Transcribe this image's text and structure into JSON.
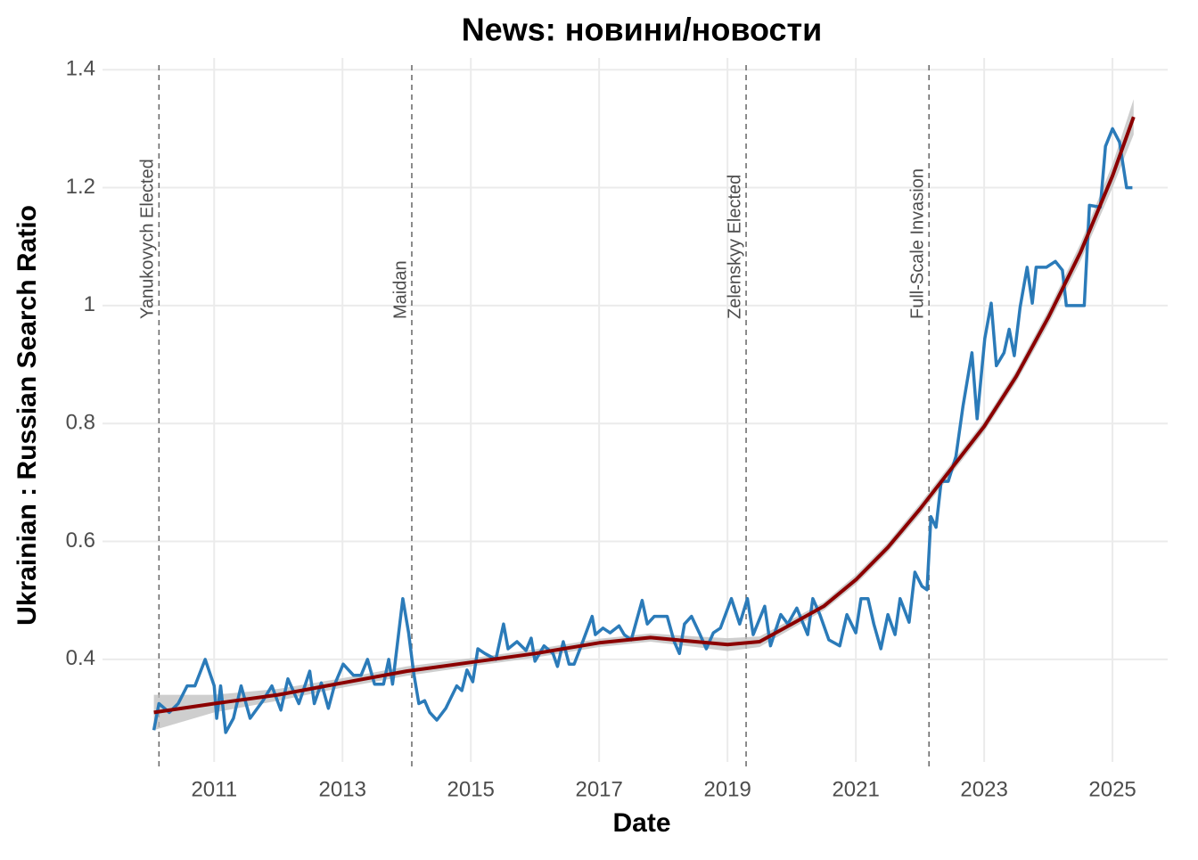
{
  "chart_data": {
    "type": "line",
    "title": "News: новини/новости",
    "xlabel": "Date",
    "ylabel": "Ukrainian : Russian Search Ratio",
    "xlim": [
      2009.26,
      2025.86
    ],
    "ylim": [
      0.226,
      1.42
    ],
    "xticks": [
      2011,
      2013,
      2015,
      2017,
      2019,
      2021,
      2023,
      2025
    ],
    "yticks": [
      0.4,
      0.6,
      0.8,
      1.0,
      1.2,
      1.4
    ],
    "grid": true,
    "series": [
      {
        "color": "#2b7bb9",
        "x": [
          2010.06,
          2010.14,
          2010.3,
          2010.44,
          2010.58,
          2010.7,
          2010.86,
          2011.0,
          2011.04,
          2011.1,
          2011.18,
          2011.3,
          2011.42,
          2011.56,
          2011.76,
          2011.9,
          2012.04,
          2012.15,
          2012.32,
          2012.49,
          2012.56,
          2012.67,
          2012.78,
          2012.88,
          2013.01,
          2013.17,
          2013.29,
          2013.39,
          2013.5,
          2013.64,
          2013.72,
          2013.78,
          2013.94,
          2014.03,
          2014.11,
          2014.19,
          2014.28,
          2014.36,
          2014.47,
          2014.61,
          2014.78,
          2014.86,
          2014.94,
          2015.03,
          2015.11,
          2015.22,
          2015.39,
          2015.51,
          2015.58,
          2015.72,
          2015.86,
          2015.94,
          2016.0,
          2016.14,
          2016.28,
          2016.35,
          2016.44,
          2016.53,
          2016.61,
          2016.72,
          2016.89,
          2016.94,
          2017.06,
          2017.17,
          2017.31,
          2017.39,
          2017.5,
          2017.67,
          2017.75,
          2017.86,
          2018.06,
          2018.17,
          2018.25,
          2018.33,
          2018.44,
          2018.56,
          2018.67,
          2018.78,
          2018.89,
          2019.06,
          2019.19,
          2019.31,
          2019.4,
          2019.58,
          2019.67,
          2019.83,
          2019.94,
          2020.08,
          2020.25,
          2020.33,
          2020.44,
          2020.58,
          2020.75,
          2020.86,
          2021.0,
          2021.08,
          2021.19,
          2021.28,
          2021.39,
          2021.5,
          2021.61,
          2021.69,
          2021.83,
          2021.92,
          2022.03,
          2022.11,
          2022.17,
          2022.25,
          2022.33,
          2022.44,
          2022.56,
          2022.67,
          2022.81,
          2022.89,
          2023.01,
          2023.11,
          2023.19,
          2023.31,
          2023.39,
          2023.47,
          2023.56,
          2023.67,
          2023.75,
          2023.81,
          2023.97,
          2024.11,
          2024.22,
          2024.28,
          2024.39,
          2024.56,
          2024.64,
          2024.81,
          2024.89,
          2025.0,
          2025.11,
          2025.22,
          2025.31
        ],
        "values": [
          0.28,
          0.325,
          0.31,
          0.325,
          0.355,
          0.355,
          0.4,
          0.355,
          0.3,
          0.355,
          0.276,
          0.3,
          0.355,
          0.3,
          0.33,
          0.355,
          0.314,
          0.367,
          0.325,
          0.38,
          0.325,
          0.36,
          0.317,
          0.358,
          0.392,
          0.373,
          0.373,
          0.4,
          0.358,
          0.358,
          0.4,
          0.358,
          0.503,
          0.445,
          0.377,
          0.325,
          0.33,
          0.31,
          0.297,
          0.317,
          0.355,
          0.347,
          0.382,
          0.362,
          0.418,
          0.41,
          0.4,
          0.46,
          0.418,
          0.43,
          0.415,
          0.436,
          0.397,
          0.423,
          0.41,
          0.388,
          0.43,
          0.392,
          0.392,
          0.423,
          0.473,
          0.442,
          0.453,
          0.445,
          0.457,
          0.442,
          0.433,
          0.5,
          0.46,
          0.473,
          0.473,
          0.43,
          0.41,
          0.46,
          0.473,
          0.445,
          0.418,
          0.445,
          0.453,
          0.503,
          0.46,
          0.503,
          0.442,
          0.49,
          0.423,
          0.476,
          0.46,
          0.487,
          0.442,
          0.503,
          0.476,
          0.433,
          0.423,
          0.476,
          0.445,
          0.503,
          0.503,
          0.46,
          0.418,
          0.476,
          0.442,
          0.503,
          0.463,
          0.548,
          0.524,
          0.518,
          0.642,
          0.624,
          0.702,
          0.702,
          0.744,
          0.83,
          0.92,
          0.808,
          0.944,
          1.004,
          0.898,
          0.92,
          0.96,
          0.915,
          0.997,
          1.065,
          1.004,
          1.065,
          1.065,
          1.075,
          1.06,
          1.0,
          1.0,
          1.0,
          1.17,
          1.167,
          1.27,
          1.3,
          1.277,
          1.2,
          1.2
        ]
      },
      {
        "color": "#8b0000",
        "band_color": "#bdbdbd",
        "x": [
          2010.06,
          2011,
          2012,
          2013,
          2014,
          2015,
          2016,
          2017,
          2017.8,
          2018.5,
          2019,
          2019.5,
          2020,
          2020.5,
          2021,
          2021.5,
          2022,
          2022.5,
          2023,
          2023.5,
          2024,
          2024.5,
          2025,
          2025.33
        ],
        "values": [
          0.31,
          0.325,
          0.34,
          0.36,
          0.38,
          0.395,
          0.41,
          0.428,
          0.437,
          0.43,
          0.425,
          0.43,
          0.46,
          0.49,
          0.535,
          0.59,
          0.655,
          0.725,
          0.795,
          0.88,
          0.98,
          1.09,
          1.22,
          1.32
        ],
        "lower": [
          0.28,
          0.31,
          0.33,
          0.352,
          0.372,
          0.388,
          0.403,
          0.421,
          0.43,
          0.421,
          0.414,
          0.421,
          0.452,
          0.483,
          0.527,
          0.582,
          0.646,
          0.716,
          0.786,
          0.87,
          0.968,
          1.075,
          1.2,
          1.29
        ],
        "upper": [
          0.34,
          0.34,
          0.35,
          0.368,
          0.388,
          0.402,
          0.417,
          0.435,
          0.444,
          0.439,
          0.436,
          0.439,
          0.468,
          0.497,
          0.543,
          0.598,
          0.664,
          0.734,
          0.804,
          0.89,
          0.992,
          1.105,
          1.24,
          1.35
        ]
      }
    ],
    "annotations": [
      {
        "x": 2010.14,
        "label": "Yanukovych Elected"
      },
      {
        "x": 2014.08,
        "label": "Maidan"
      },
      {
        "x": 2019.29,
        "label": "Zelenskyy Elected"
      },
      {
        "x": 2022.14,
        "label": "Full-Scale Invasion"
      }
    ]
  }
}
